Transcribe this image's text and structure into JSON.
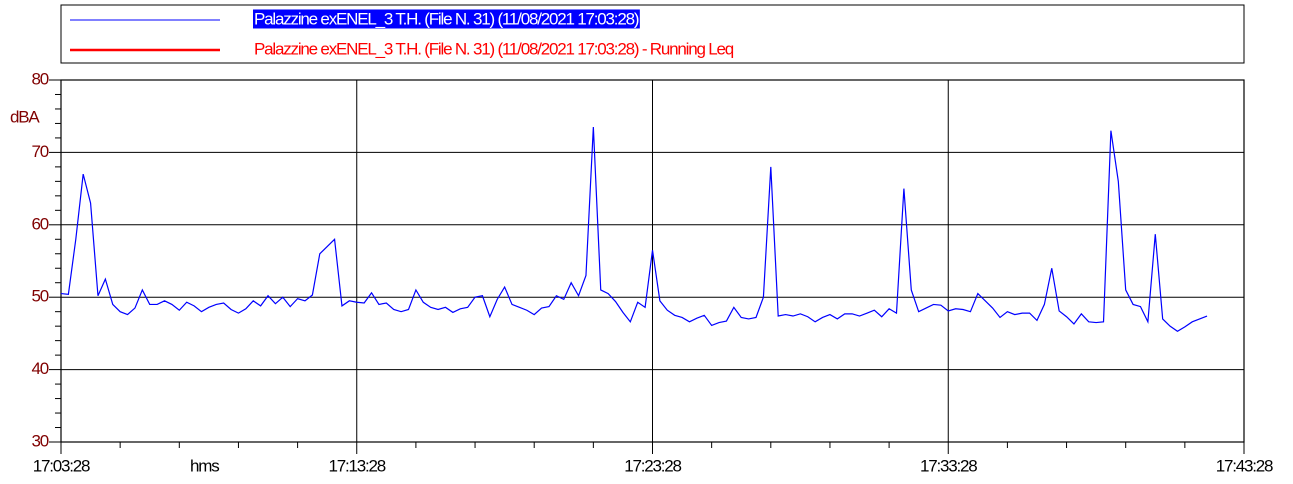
{
  "chart_data": {
    "type": "line",
    "x_label": "hms",
    "y_label": "dBA",
    "x": [
      "17:03:28",
      "17:03:43",
      "17:03:58",
      "17:04:13",
      "17:04:28",
      "17:04:43",
      "17:04:58",
      "17:05:13",
      "17:05:28",
      "17:05:43",
      "17:05:58",
      "17:06:13",
      "17:06:28",
      "17:06:43",
      "17:06:58",
      "17:07:13",
      "17:07:28",
      "17:07:43",
      "17:07:58",
      "17:08:13",
      "17:08:28",
      "17:08:43",
      "17:08:58",
      "17:09:13",
      "17:09:28",
      "17:09:43",
      "17:09:58",
      "17:10:13",
      "17:10:28",
      "17:10:43",
      "17:10:58",
      "17:11:13",
      "17:11:28",
      "17:11:43",
      "17:11:58",
      "17:12:13",
      "17:12:28",
      "17:12:43",
      "17:12:58",
      "17:13:13",
      "17:13:28",
      "17:13:43",
      "17:13:58",
      "17:14:13",
      "17:14:28",
      "17:14:43",
      "17:14:58",
      "17:15:13",
      "17:15:28",
      "17:15:43",
      "17:15:58",
      "17:16:13",
      "17:16:28",
      "17:16:43",
      "17:16:58",
      "17:17:13",
      "17:17:28",
      "17:17:43",
      "17:17:58",
      "17:18:13",
      "17:18:28",
      "17:18:43",
      "17:18:58",
      "17:19:13",
      "17:19:28",
      "17:19:43",
      "17:19:58",
      "17:20:13",
      "17:20:28",
      "17:20:43",
      "17:20:58",
      "17:21:13",
      "17:21:28",
      "17:21:43",
      "17:21:58",
      "17:22:13",
      "17:22:28",
      "17:22:43",
      "17:22:58",
      "17:23:13",
      "17:23:28",
      "17:23:43",
      "17:23:58",
      "17:24:13",
      "17:24:28",
      "17:24:43",
      "17:24:58",
      "17:25:13",
      "17:25:28",
      "17:25:43",
      "17:25:58",
      "17:26:13",
      "17:26:28",
      "17:26:43",
      "17:26:58",
      "17:27:13",
      "17:27:28",
      "17:27:43",
      "17:27:58",
      "17:28:13",
      "17:28:28",
      "17:28:43",
      "17:28:58",
      "17:29:13",
      "17:29:28",
      "17:29:43",
      "17:29:58",
      "17:30:13",
      "17:30:28",
      "17:30:43",
      "17:30:58",
      "17:31:13",
      "17:31:28",
      "17:31:43",
      "17:31:58",
      "17:32:13",
      "17:32:28",
      "17:32:43",
      "17:32:58",
      "17:33:13",
      "17:33:28",
      "17:33:43",
      "17:33:58",
      "17:34:13",
      "17:34:28",
      "17:34:43",
      "17:34:58",
      "17:35:13",
      "17:35:28",
      "17:35:43",
      "17:35:58",
      "17:36:13",
      "17:36:28",
      "17:36:43",
      "17:36:58",
      "17:37:13",
      "17:37:28",
      "17:37:43",
      "17:37:58",
      "17:38:13",
      "17:38:28",
      "17:38:43",
      "17:38:58",
      "17:39:13",
      "17:39:28",
      "17:39:43",
      "17:39:58",
      "17:40:13",
      "17:40:28",
      "17:40:43",
      "17:40:58",
      "17:41:13",
      "17:41:28",
      "17:41:43",
      "17:41:58",
      "17:42:13"
    ],
    "series": [
      {
        "name": "Palazzine exENEL_3 T.H.  (File N. 31) (11/08/2021 17:03:28)",
        "color": "#0000ff",
        "values": [
          50.5,
          50.4,
          58,
          67,
          63,
          50.2,
          52.5,
          49,
          48,
          47.6,
          48.5,
          51,
          49,
          49,
          49.5,
          49,
          48.2,
          49.3,
          48.8,
          48,
          48.6,
          49,
          49.2,
          48.3,
          47.8,
          48.4,
          49.5,
          48.8,
          50.2,
          49.1,
          50,
          48.7,
          49.8,
          49.5,
          50.3,
          56,
          57,
          58,
          48.8,
          49.5,
          49.3,
          49.2,
          50.6,
          49,
          49.2,
          48.3,
          48,
          48.3,
          51,
          49.3,
          48.6,
          48.3,
          48.6,
          47.9,
          48.4,
          48.6,
          50,
          50.2,
          47.3,
          49.7,
          51.4,
          49,
          48.6,
          48.2,
          47.6,
          48.5,
          48.7,
          50.2,
          49.7,
          52,
          50.2,
          53,
          73.5,
          51,
          50.5,
          49.4,
          47.9,
          46.6,
          49.3,
          48.6,
          56.5,
          49.5,
          48.2,
          47.5,
          47.2,
          46.6,
          47.1,
          47.5,
          46.1,
          46.5,
          46.7,
          48.6,
          47.2,
          47,
          47.2,
          50,
          68,
          47.4,
          47.6,
          47.4,
          47.7,
          47.3,
          46.6,
          47.2,
          47.6,
          47,
          47.7,
          47.7,
          47.4,
          47.8,
          48.2,
          47.3,
          48.4,
          47.8,
          65,
          51,
          48,
          48.5,
          49,
          48.9,
          48.1,
          48.4,
          48.3,
          48,
          50.5,
          49.5,
          48.5,
          47.2,
          48,
          47.6,
          47.8,
          47.8,
          46.8,
          49,
          54,
          48.1,
          47.3,
          46.3,
          47.7,
          46.6,
          46.5,
          46.6,
          73,
          66,
          51,
          49,
          48.7,
          46.6,
          58.7,
          47,
          46,
          45.3,
          45.9,
          46.6,
          47,
          47.4
        ]
      },
      {
        "name": "Palazzine exENEL_3 T.H.  (File N. 31) (11/08/2021 17:03:28) - Running Leq",
        "color": "#ff0000",
        "values": [
          null,
          null,
          null,
          null,
          null,
          null,
          null,
          null,
          null,
          null,
          null,
          null,
          null,
          null,
          null,
          null,
          null,
          null,
          null,
          null,
          null,
          null,
          null,
          null,
          null,
          null,
          null,
          null,
          null,
          null,
          null,
          null,
          null,
          null,
          null,
          null,
          null,
          null,
          null,
          null,
          null,
          null,
          null,
          null,
          null,
          null,
          null,
          null,
          null,
          null,
          null,
          null,
          null,
          null,
          null,
          null,
          null,
          null,
          null,
          null,
          null,
          null,
          null,
          null,
          null,
          null,
          null,
          null,
          null,
          null,
          null,
          null,
          null,
          null,
          null,
          null,
          null,
          null,
          null,
          null,
          null,
          null,
          null,
          null,
          null,
          null,
          null,
          null,
          null,
          null,
          null,
          null,
          null,
          null,
          null,
          null,
          null,
          null,
          null,
          null,
          null,
          null,
          null,
          null,
          null,
          null,
          null,
          null,
          null,
          null,
          null,
          null,
          null,
          null,
          null,
          null,
          null,
          null,
          null,
          null,
          null,
          null,
          null,
          null,
          null,
          null,
          null,
          null,
          null,
          null,
          null,
          null,
          null,
          null,
          null,
          null,
          null,
          null,
          null,
          null,
          null,
          null,
          null,
          null,
          null,
          null,
          null,
          null,
          null,
          null,
          null,
          null,
          null,
          null,
          null,
          null
        ]
      }
    ],
    "xlim": [
      "17:03:28",
      "17:43:28"
    ],
    "xticks": [
      "17:03:28",
      "17:13:28",
      "17:23:28",
      "17:33:28",
      "17:43:28"
    ],
    "ylim": [
      30,
      80
    ],
    "yticks": [
      30,
      40,
      50,
      60,
      70,
      80
    ],
    "grid": true,
    "legend": "top"
  }
}
